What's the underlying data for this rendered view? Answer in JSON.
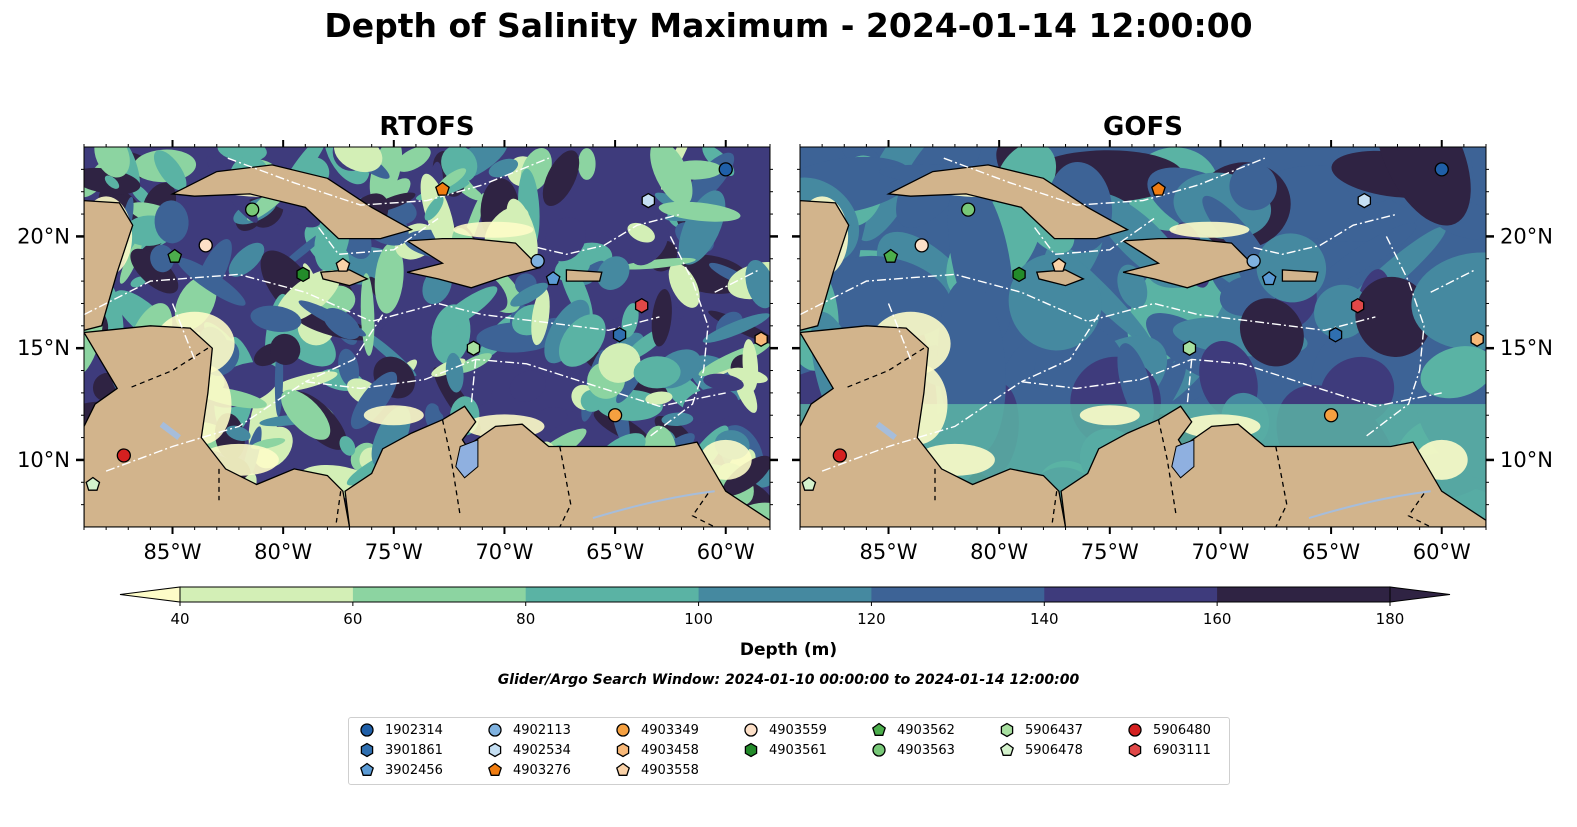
{
  "title": "Depth of Salinity Maximum - 2024-01-14 12:00:00",
  "panels": [
    {
      "title": "RTOFS"
    },
    {
      "title": "GOFS"
    }
  ],
  "lon_ticks": [
    "85°W",
    "80°W",
    "75°W",
    "70°W",
    "65°W",
    "60°W"
  ],
  "lat_ticks": [
    "20°N",
    "15°N",
    "10°N"
  ],
  "colorbar": {
    "label": "Depth (m)",
    "ticks": [
      "40",
      "60",
      "80",
      "100",
      "120",
      "140",
      "160",
      "180"
    ],
    "colors": [
      "#fdfcc8",
      "#d3efb6",
      "#8cd4a1",
      "#5ab3a4",
      "#4589a0",
      "#3d6396",
      "#3e3b7c",
      "#2f2343"
    ]
  },
  "search_window": "Glider/Argo Search Window: 2024-01-10 00:00:00 to 2024-01-14 12:00:00",
  "legend": [
    {
      "id": "1902314",
      "marker": "circle",
      "color": "#1f5fa8"
    },
    {
      "id": "3901861",
      "marker": "hexagon",
      "color": "#2f6fb0"
    },
    {
      "id": "3902456",
      "marker": "pentagon",
      "color": "#5b9bd5"
    },
    {
      "id": "4902113",
      "marker": "circle",
      "color": "#7fb2e0"
    },
    {
      "id": "4902534",
      "marker": "hexagon",
      "color": "#c5dff3"
    },
    {
      "id": "4903276",
      "marker": "pentagon",
      "color": "#f07c10"
    },
    {
      "id": "4903349",
      "marker": "circle",
      "color": "#f5a040"
    },
    {
      "id": "4903458",
      "marker": "hexagon",
      "color": "#f8b878"
    },
    {
      "id": "4903558",
      "marker": "pentagon",
      "color": "#fad2a8"
    },
    {
      "id": "4903559",
      "marker": "circle",
      "color": "#fde0c8"
    },
    {
      "id": "4903561",
      "marker": "hexagon",
      "color": "#238b2a"
    },
    {
      "id": "4903562",
      "marker": "pentagon",
      "color": "#4cae4c"
    },
    {
      "id": "4903563",
      "marker": "circle",
      "color": "#78c878"
    },
    {
      "id": "5906437",
      "marker": "hexagon",
      "color": "#a8e0a0"
    },
    {
      "id": "5906478",
      "marker": "pentagon",
      "color": "#d4f2cc"
    },
    {
      "id": "5906480",
      "marker": "circle",
      "color": "#d42020"
    },
    {
      "id": "6903111",
      "marker": "hexagon",
      "color": "#e04848"
    }
  ],
  "map_extent": {
    "lon": [
      -89,
      -58
    ],
    "lat": [
      7,
      24
    ]
  },
  "floats": [
    {
      "id": "1902314",
      "lon": -60.0,
      "lat": 23.0
    },
    {
      "id": "3901861",
      "lon": -64.8,
      "lat": 15.6
    },
    {
      "id": "3902456",
      "lon": -67.8,
      "lat": 18.1
    },
    {
      "id": "4902113",
      "lon": -68.5,
      "lat": 18.9
    },
    {
      "id": "4902534",
      "lon": -63.5,
      "lat": 21.6
    },
    {
      "id": "4903276",
      "lon": -72.8,
      "lat": 22.1
    },
    {
      "id": "4903349",
      "lon": -65.0,
      "lat": 12.0
    },
    {
      "id": "4903458",
      "lon": -58.4,
      "lat": 15.4
    },
    {
      "id": "4903558",
      "lon": -77.3,
      "lat": 18.7
    },
    {
      "id": "4903559",
      "lon": -83.5,
      "lat": 19.6
    },
    {
      "id": "4903561",
      "lon": -79.1,
      "lat": 18.3
    },
    {
      "id": "4903562",
      "lon": -84.9,
      "lat": 19.1
    },
    {
      "id": "4903563",
      "lon": -81.4,
      "lat": 21.2
    },
    {
      "id": "5906437",
      "lon": -71.4,
      "lat": 15.0
    },
    {
      "id": "5906478",
      "lon": -88.6,
      "lat": 8.9
    },
    {
      "id": "5906480",
      "lon": -87.2,
      "lat": 10.2
    },
    {
      "id": "6903111",
      "lon": -63.8,
      "lat": 16.9
    }
  ]
}
